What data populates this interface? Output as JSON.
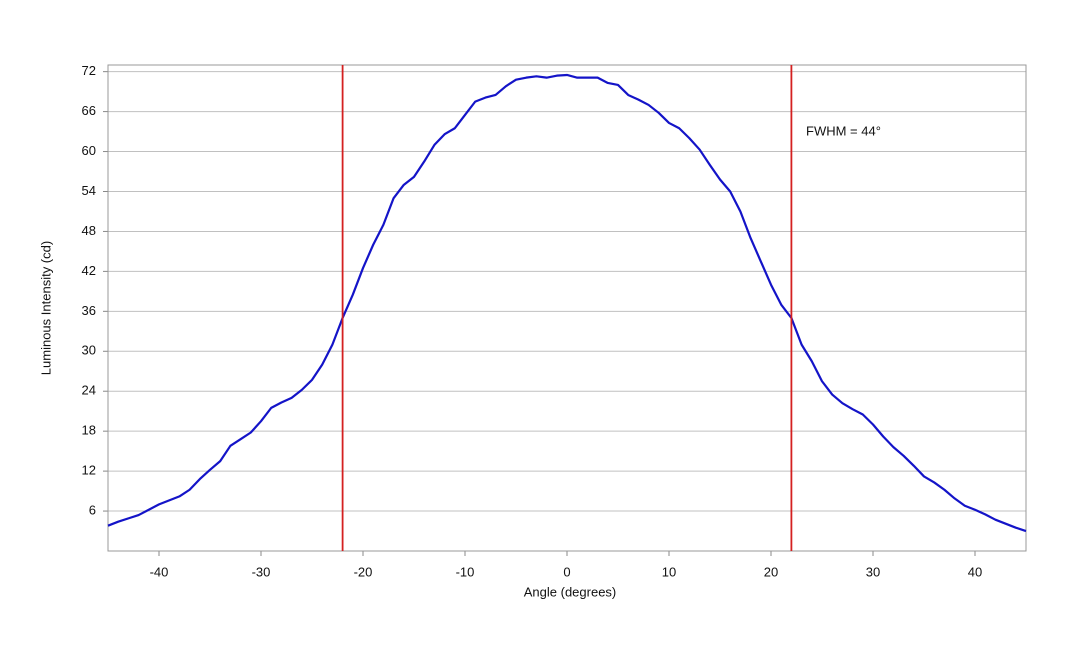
{
  "chart_data": {
    "type": "line",
    "x_label": "Angle (degrees)",
    "y_label": "Luminous Intensity (cd)",
    "annotation": "FWHM = 44°",
    "xlim": [
      -45,
      45
    ],
    "ylim": [
      0,
      73
    ],
    "xticks": [
      -40,
      -30,
      -20,
      -10,
      0,
      10,
      20,
      30,
      40
    ],
    "yticks": [
      6,
      12,
      18,
      24,
      30,
      36,
      42,
      48,
      54,
      60,
      66,
      72
    ],
    "grid": true,
    "vlines": [
      -22,
      22
    ],
    "vline_color": "#d42020",
    "x": [
      -45,
      -44,
      -43,
      -42,
      -41,
      -40,
      -39,
      -38,
      -37,
      -36,
      -35,
      -34,
      -33,
      -32,
      -31,
      -30,
      -29,
      -28,
      -27,
      -26,
      -25,
      -24,
      -23,
      -22,
      -21,
      -20,
      -19,
      -18,
      -17,
      -16,
      -15,
      -14,
      -13,
      -12,
      -11,
      -10,
      -9,
      -8,
      -7,
      -6,
      -5,
      -4,
      -3,
      -2,
      -1,
      0,
      1,
      2,
      3,
      4,
      5,
      6,
      7,
      8,
      9,
      10,
      11,
      12,
      13,
      14,
      15,
      16,
      17,
      18,
      19,
      20,
      21,
      22,
      23,
      24,
      25,
      26,
      27,
      28,
      29,
      30,
      31,
      32,
      33,
      34,
      35,
      36,
      37,
      38,
      39,
      40,
      41,
      42,
      43,
      44,
      45
    ],
    "series": [
      {
        "name": "Intensity",
        "color": "#1414c8",
        "values": [
          3.8,
          4.4,
          4.9,
          5.4,
          6.2,
          7.0,
          7.6,
          8.2,
          9.2,
          10.8,
          12.2,
          13.5,
          15.8,
          16.8,
          17.8,
          19.5,
          21.5,
          22.3,
          23.0,
          24.2,
          25.7,
          28.0,
          31.0,
          35.0,
          38.5,
          42.5,
          46.0,
          49.0,
          53.0,
          55.0,
          56.2,
          58.5,
          61.0,
          62.6,
          63.5,
          65.5,
          67.5,
          68.1,
          68.5,
          69.8,
          70.8,
          71.1,
          71.3,
          71.1,
          71.4,
          71.5,
          71.1,
          71.1,
          71.1,
          70.3,
          70.0,
          68.5,
          67.8,
          67.0,
          65.8,
          64.3,
          63.5,
          62.0,
          60.3,
          58.0,
          55.8,
          54.0,
          51.0,
          47.0,
          43.5,
          40.0,
          37.0,
          35.0,
          31.0,
          28.5,
          25.5,
          23.5,
          22.2,
          21.3,
          20.5,
          19.0,
          17.2,
          15.6,
          14.3,
          12.8,
          11.2,
          10.3,
          9.2,
          7.9,
          6.8,
          6.2,
          5.5,
          4.7,
          4.1,
          3.5,
          3.0
        ]
      }
    ]
  }
}
